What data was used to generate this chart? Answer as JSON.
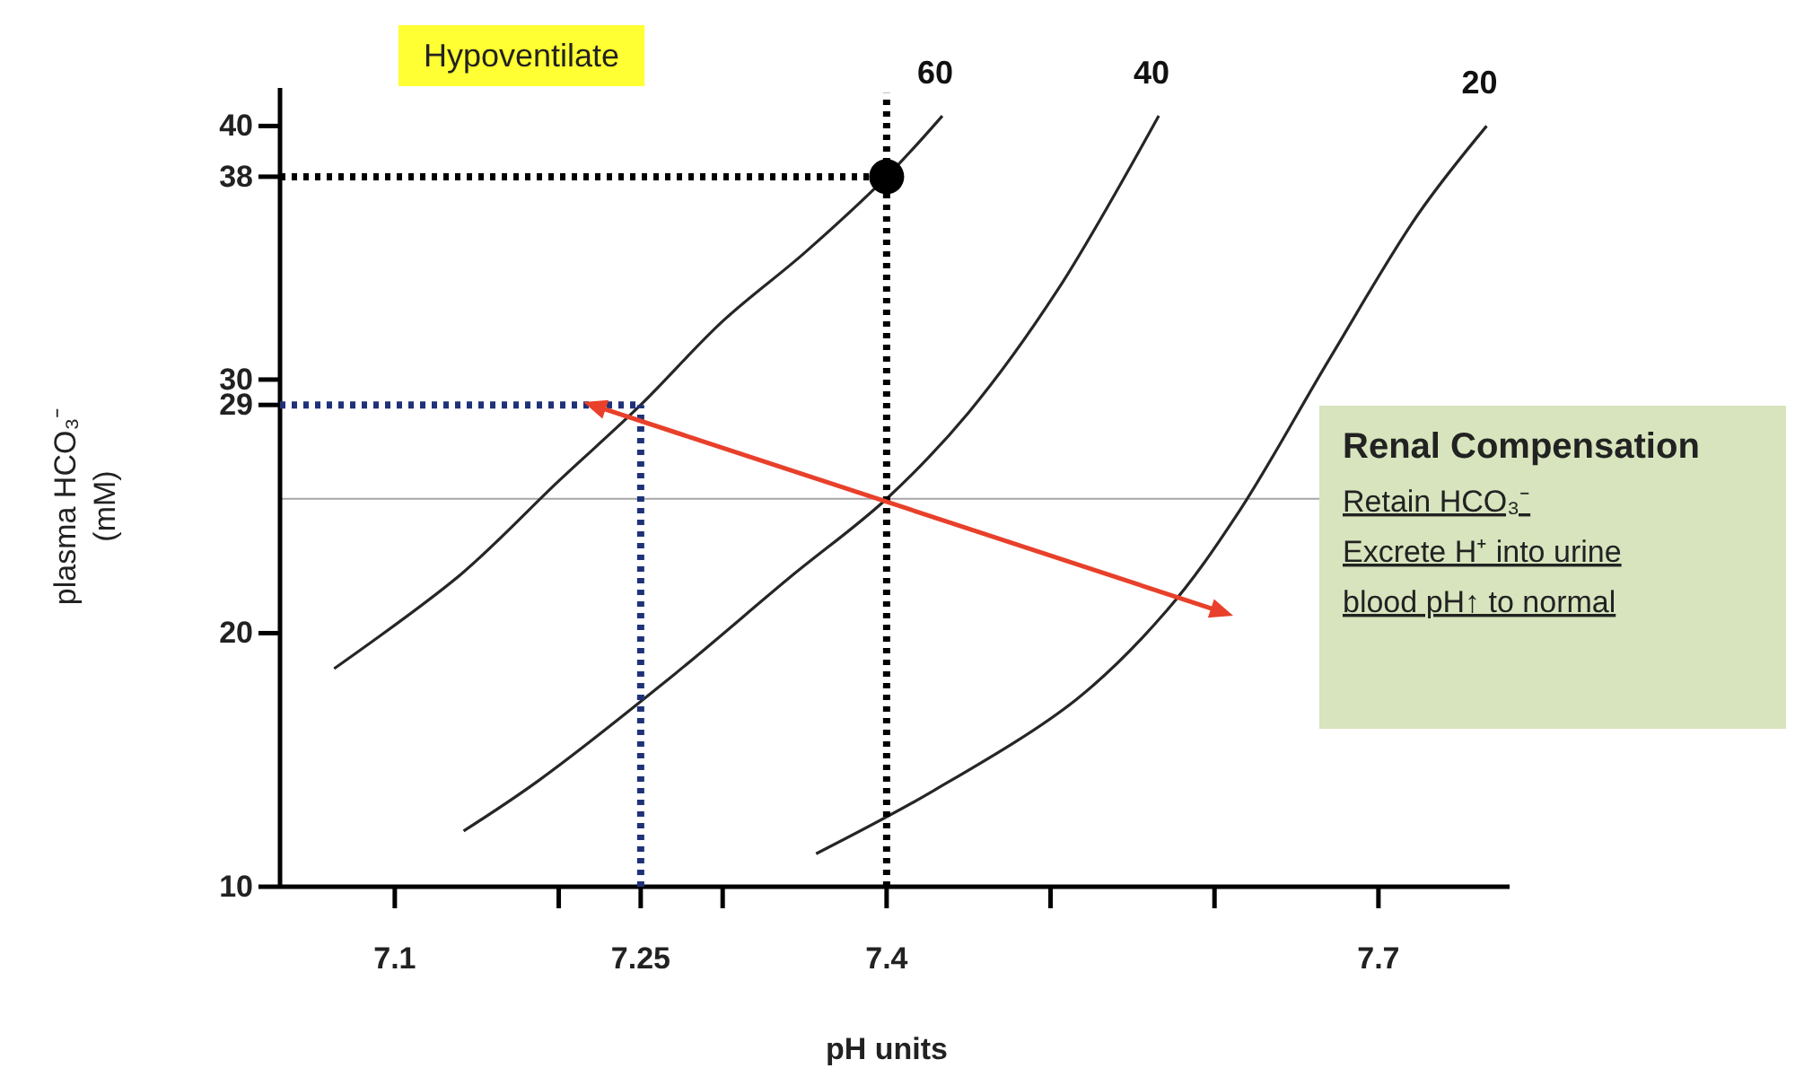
{
  "chart_data": {
    "type": "line",
    "xlabel": "pH units",
    "ylabel": "plasma HCO₃⁻\n(mM)",
    "xlim": [
      7.03,
      7.78
    ],
    "ylim": [
      10,
      41.5
    ],
    "xticks": [
      7.1,
      {
        "value": 7.2,
        "label": null
      },
      7.25,
      {
        "value": 7.3,
        "label": null
      },
      7.4,
      {
        "value": 7.5,
        "label": null
      },
      {
        "value": 7.6,
        "label": null
      },
      7.7
    ],
    "yticks": [
      10,
      20,
      29,
      30,
      38,
      40
    ],
    "ref_lines": [
      {
        "axis": "y",
        "value": 25.3,
        "color": "#a6a6a6"
      }
    ],
    "annotations": [
      "Hypoventilate",
      "Renal Compensation",
      "Retain  HCO₃⁻",
      "Excrete  H⁺ into urine",
      "blood pH↑ to normal"
    ],
    "series": [
      {
        "name": "60",
        "color": "#262626",
        "x": [
          7.063,
          7.14,
          7.2,
          7.25,
          7.3,
          7.35,
          7.4,
          7.434
        ],
        "values": [
          18.6,
          22.3,
          26.0,
          29,
          32.3,
          35.0,
          38,
          40.4
        ]
      },
      {
        "name": "40",
        "color": "#262626",
        "x": [
          7.142,
          7.188,
          7.271,
          7.341,
          7.4,
          7.45,
          7.505,
          7.566
        ],
        "values": [
          12.2,
          14.2,
          18.4,
          22.2,
          25.3,
          28.7,
          33.6,
          40.4
        ]
      },
      {
        "name": "20",
        "color": "#262626",
        "x": [
          7.357,
          7.429,
          7.516,
          7.571,
          7.615,
          7.67,
          7.724,
          7.766
        ],
        "values": [
          11.3,
          13.8,
          17.4,
          20.9,
          24.8,
          30.8,
          36.5,
          40
        ]
      },
      {
        "color": "#000000",
        "line_style": "dotted",
        "x": [
          7.4,
          7.4
        ],
        "values": [
          10,
          41.3
        ]
      },
      {
        "color": "#000000",
        "line_style": "dotted",
        "x": [
          7.03,
          7.4
        ],
        "values": [
          38,
          38
        ]
      },
      {
        "color": "#1f3278",
        "line_style": "dotted",
        "x": [
          7.03,
          7.25
        ],
        "values": [
          29,
          29
        ]
      },
      {
        "color": "#1f3278",
        "line_style": "dotted",
        "x": [
          7.25,
          7.25
        ],
        "values": [
          10,
          29
        ]
      },
      {
        "type": "scatter",
        "marker": "circle",
        "color": "#000000",
        "x": [
          7.4
        ],
        "values": [
          38
        ]
      }
    ]
  }
}
